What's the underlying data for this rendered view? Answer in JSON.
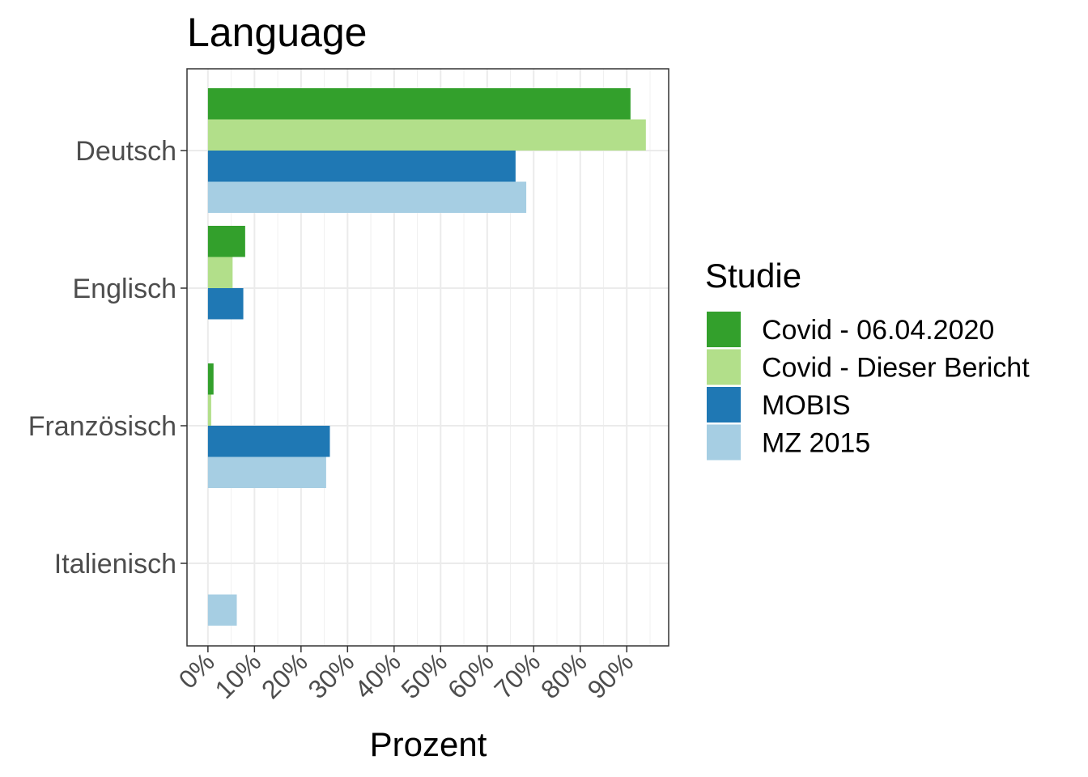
{
  "chart_data": {
    "type": "bar",
    "orientation": "horizontal",
    "title": "Language",
    "xlabel": "Prozent",
    "ylabel": "",
    "categories": [
      "Deutsch",
      "Englisch",
      "Französisch",
      "Italienisch"
    ],
    "x_ticks": [
      "0%",
      "10%",
      "20%",
      "30%",
      "40%",
      "50%",
      "60%",
      "70%",
      "80%",
      "90%"
    ],
    "xlim": [
      -4.5,
      99
    ],
    "grid": true,
    "legend": {
      "title": "Studie",
      "position": "right"
    },
    "series": [
      {
        "name": "Covid - 06.04.2020",
        "color": "#33a02c",
        "values": [
          90.8,
          8.0,
          1.2,
          null
        ]
      },
      {
        "name": "Covid - Dieser Bericht",
        "color": "#b2df8a",
        "values": [
          94.1,
          5.3,
          0.7,
          null
        ]
      },
      {
        "name": "MOBIS",
        "color": "#1f78b4",
        "values": [
          66.1,
          7.6,
          26.2,
          null
        ]
      },
      {
        "name": "MZ 2015",
        "color": "#a6cee3",
        "values": [
          68.4,
          null,
          25.4,
          6.2
        ]
      }
    ]
  }
}
